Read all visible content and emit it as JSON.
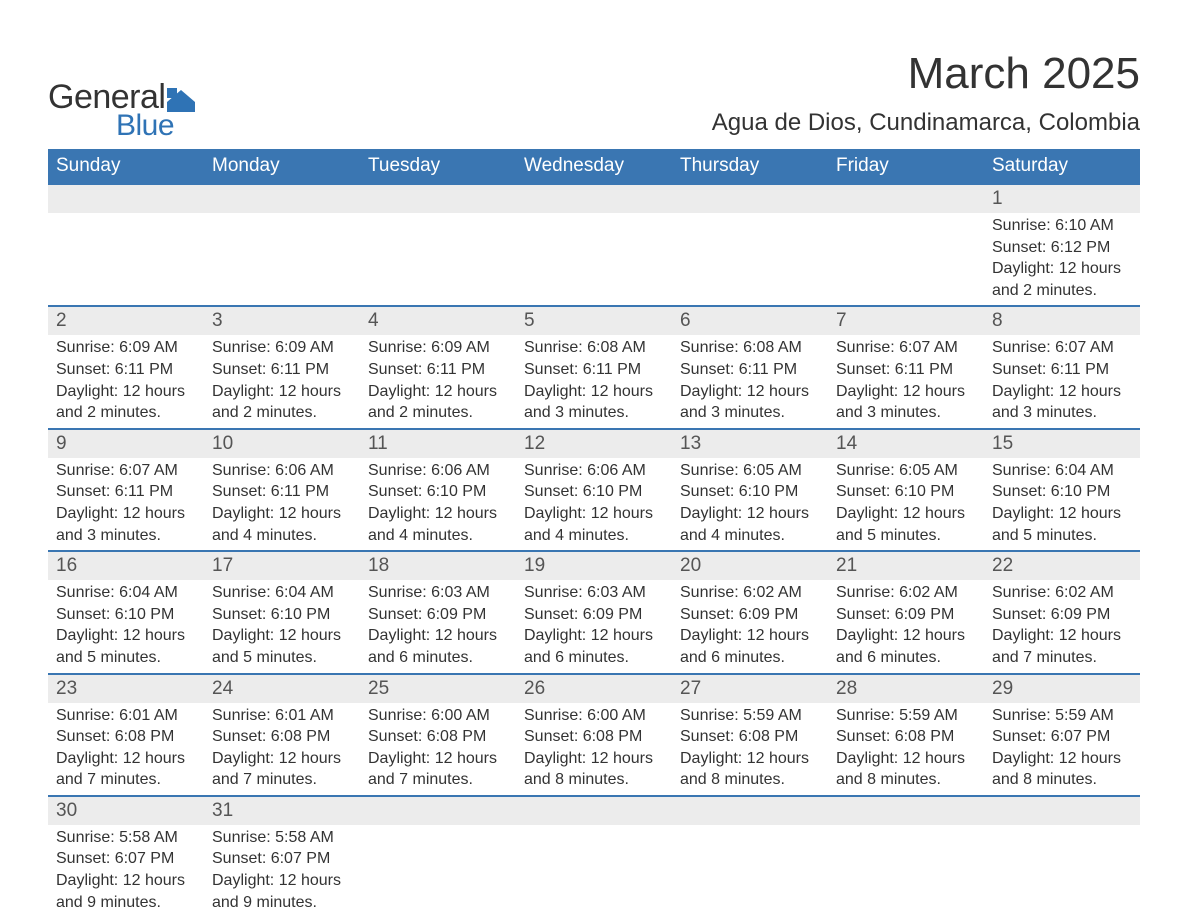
{
  "brand": {
    "general": "General",
    "blue": "Blue",
    "color": "#2f73b5"
  },
  "title": "March 2025",
  "location": "Agua de Dios, Cundinamarca, Colombia",
  "header_bg": "#3a76b2",
  "daynum_bg": "#ececec",
  "weekdays": [
    "Sunday",
    "Monday",
    "Tuesday",
    "Wednesday",
    "Thursday",
    "Friday",
    "Saturday"
  ],
  "weeks": [
    [
      null,
      null,
      null,
      null,
      null,
      null,
      {
        "n": "1",
        "sr": "Sunrise: 6:10 AM",
        "ss": "Sunset: 6:12 PM",
        "d1": "Daylight: 12 hours",
        "d2": "and 2 minutes."
      }
    ],
    [
      {
        "n": "2",
        "sr": "Sunrise: 6:09 AM",
        "ss": "Sunset: 6:11 PM",
        "d1": "Daylight: 12 hours",
        "d2": "and 2 minutes."
      },
      {
        "n": "3",
        "sr": "Sunrise: 6:09 AM",
        "ss": "Sunset: 6:11 PM",
        "d1": "Daylight: 12 hours",
        "d2": "and 2 minutes."
      },
      {
        "n": "4",
        "sr": "Sunrise: 6:09 AM",
        "ss": "Sunset: 6:11 PM",
        "d1": "Daylight: 12 hours",
        "d2": "and 2 minutes."
      },
      {
        "n": "5",
        "sr": "Sunrise: 6:08 AM",
        "ss": "Sunset: 6:11 PM",
        "d1": "Daylight: 12 hours",
        "d2": "and 3 minutes."
      },
      {
        "n": "6",
        "sr": "Sunrise: 6:08 AM",
        "ss": "Sunset: 6:11 PM",
        "d1": "Daylight: 12 hours",
        "d2": "and 3 minutes."
      },
      {
        "n": "7",
        "sr": "Sunrise: 6:07 AM",
        "ss": "Sunset: 6:11 PM",
        "d1": "Daylight: 12 hours",
        "d2": "and 3 minutes."
      },
      {
        "n": "8",
        "sr": "Sunrise: 6:07 AM",
        "ss": "Sunset: 6:11 PM",
        "d1": "Daylight: 12 hours",
        "d2": "and 3 minutes."
      }
    ],
    [
      {
        "n": "9",
        "sr": "Sunrise: 6:07 AM",
        "ss": "Sunset: 6:11 PM",
        "d1": "Daylight: 12 hours",
        "d2": "and 3 minutes."
      },
      {
        "n": "10",
        "sr": "Sunrise: 6:06 AM",
        "ss": "Sunset: 6:11 PM",
        "d1": "Daylight: 12 hours",
        "d2": "and 4 minutes."
      },
      {
        "n": "11",
        "sr": "Sunrise: 6:06 AM",
        "ss": "Sunset: 6:10 PM",
        "d1": "Daylight: 12 hours",
        "d2": "and 4 minutes."
      },
      {
        "n": "12",
        "sr": "Sunrise: 6:06 AM",
        "ss": "Sunset: 6:10 PM",
        "d1": "Daylight: 12 hours",
        "d2": "and 4 minutes."
      },
      {
        "n": "13",
        "sr": "Sunrise: 6:05 AM",
        "ss": "Sunset: 6:10 PM",
        "d1": "Daylight: 12 hours",
        "d2": "and 4 minutes."
      },
      {
        "n": "14",
        "sr": "Sunrise: 6:05 AM",
        "ss": "Sunset: 6:10 PM",
        "d1": "Daylight: 12 hours",
        "d2": "and 5 minutes."
      },
      {
        "n": "15",
        "sr": "Sunrise: 6:04 AM",
        "ss": "Sunset: 6:10 PM",
        "d1": "Daylight: 12 hours",
        "d2": "and 5 minutes."
      }
    ],
    [
      {
        "n": "16",
        "sr": "Sunrise: 6:04 AM",
        "ss": "Sunset: 6:10 PM",
        "d1": "Daylight: 12 hours",
        "d2": "and 5 minutes."
      },
      {
        "n": "17",
        "sr": "Sunrise: 6:04 AM",
        "ss": "Sunset: 6:10 PM",
        "d1": "Daylight: 12 hours",
        "d2": "and 5 minutes."
      },
      {
        "n": "18",
        "sr": "Sunrise: 6:03 AM",
        "ss": "Sunset: 6:09 PM",
        "d1": "Daylight: 12 hours",
        "d2": "and 6 minutes."
      },
      {
        "n": "19",
        "sr": "Sunrise: 6:03 AM",
        "ss": "Sunset: 6:09 PM",
        "d1": "Daylight: 12 hours",
        "d2": "and 6 minutes."
      },
      {
        "n": "20",
        "sr": "Sunrise: 6:02 AM",
        "ss": "Sunset: 6:09 PM",
        "d1": "Daylight: 12 hours",
        "d2": "and 6 minutes."
      },
      {
        "n": "21",
        "sr": "Sunrise: 6:02 AM",
        "ss": "Sunset: 6:09 PM",
        "d1": "Daylight: 12 hours",
        "d2": "and 6 minutes."
      },
      {
        "n": "22",
        "sr": "Sunrise: 6:02 AM",
        "ss": "Sunset: 6:09 PM",
        "d1": "Daylight: 12 hours",
        "d2": "and 7 minutes."
      }
    ],
    [
      {
        "n": "23",
        "sr": "Sunrise: 6:01 AM",
        "ss": "Sunset: 6:08 PM",
        "d1": "Daylight: 12 hours",
        "d2": "and 7 minutes."
      },
      {
        "n": "24",
        "sr": "Sunrise: 6:01 AM",
        "ss": "Sunset: 6:08 PM",
        "d1": "Daylight: 12 hours",
        "d2": "and 7 minutes."
      },
      {
        "n": "25",
        "sr": "Sunrise: 6:00 AM",
        "ss": "Sunset: 6:08 PM",
        "d1": "Daylight: 12 hours",
        "d2": "and 7 minutes."
      },
      {
        "n": "26",
        "sr": "Sunrise: 6:00 AM",
        "ss": "Sunset: 6:08 PM",
        "d1": "Daylight: 12 hours",
        "d2": "and 8 minutes."
      },
      {
        "n": "27",
        "sr": "Sunrise: 5:59 AM",
        "ss": "Sunset: 6:08 PM",
        "d1": "Daylight: 12 hours",
        "d2": "and 8 minutes."
      },
      {
        "n": "28",
        "sr": "Sunrise: 5:59 AM",
        "ss": "Sunset: 6:08 PM",
        "d1": "Daylight: 12 hours",
        "d2": "and 8 minutes."
      },
      {
        "n": "29",
        "sr": "Sunrise: 5:59 AM",
        "ss": "Sunset: 6:07 PM",
        "d1": "Daylight: 12 hours",
        "d2": "and 8 minutes."
      }
    ],
    [
      {
        "n": "30",
        "sr": "Sunrise: 5:58 AM",
        "ss": "Sunset: 6:07 PM",
        "d1": "Daylight: 12 hours",
        "d2": "and 9 minutes."
      },
      {
        "n": "31",
        "sr": "Sunrise: 5:58 AM",
        "ss": "Sunset: 6:07 PM",
        "d1": "Daylight: 12 hours",
        "d2": "and 9 minutes."
      },
      null,
      null,
      null,
      null,
      null
    ]
  ]
}
